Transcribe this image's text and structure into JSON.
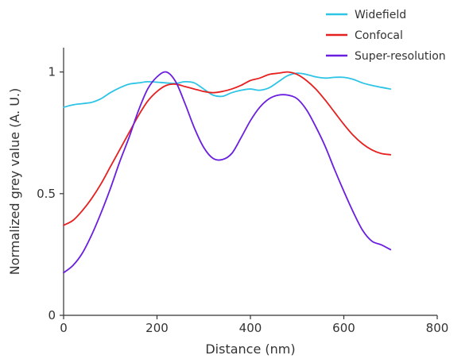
{
  "chart_data": {
    "type": "line",
    "title": "",
    "xlabel": "Distance (nm)",
    "ylabel": "Normalized grey value (A. U.)",
    "xlim": [
      0,
      800
    ],
    "ylim": [
      0,
      1.1
    ],
    "xticks": [
      0,
      200,
      400,
      600,
      800
    ],
    "xtick_labels": [
      "0",
      "200",
      "400",
      "600",
      "800"
    ],
    "yticks": [
      0,
      0.5,
      1
    ],
    "ytick_labels": [
      "0",
      "0.5",
      "1"
    ],
    "grid": false,
    "legend_position": "top-right",
    "series": [
      {
        "name": "Widefield",
        "color": "#2ec4e6",
        "x": [
          0,
          20,
          40,
          60,
          80,
          100,
          120,
          140,
          160,
          180,
          200,
          220,
          240,
          260,
          280,
          300,
          320,
          340,
          360,
          380,
          400,
          420,
          440,
          460,
          480,
          500,
          520,
          540,
          560,
          580,
          600,
          620,
          640,
          660,
          680,
          700
        ],
        "y": [
          0.855,
          0.865,
          0.87,
          0.875,
          0.89,
          0.915,
          0.935,
          0.95,
          0.955,
          0.96,
          0.958,
          0.955,
          0.953,
          0.96,
          0.955,
          0.93,
          0.905,
          0.9,
          0.915,
          0.925,
          0.93,
          0.925,
          0.935,
          0.96,
          0.985,
          0.995,
          0.99,
          0.98,
          0.975,
          0.978,
          0.978,
          0.97,
          0.955,
          0.945,
          0.937,
          0.93
        ]
      },
      {
        "name": "Confocal",
        "color": "#e62020",
        "x": [
          0,
          20,
          40,
          60,
          80,
          100,
          120,
          140,
          160,
          180,
          200,
          220,
          240,
          260,
          280,
          300,
          320,
          340,
          360,
          380,
          400,
          420,
          440,
          460,
          480,
          500,
          520,
          540,
          560,
          580,
          600,
          620,
          640,
          660,
          680,
          700
        ],
        "y": [
          0.37,
          0.39,
          0.43,
          0.48,
          0.54,
          0.61,
          0.68,
          0.75,
          0.82,
          0.88,
          0.92,
          0.945,
          0.95,
          0.94,
          0.93,
          0.92,
          0.915,
          0.92,
          0.93,
          0.945,
          0.965,
          0.975,
          0.99,
          0.995,
          1.0,
          0.99,
          0.965,
          0.93,
          0.885,
          0.835,
          0.785,
          0.74,
          0.705,
          0.68,
          0.665,
          0.66
        ]
      },
      {
        "name": "Super-resolution",
        "color": "#6a1fe0",
        "x": [
          0,
          20,
          40,
          60,
          80,
          100,
          120,
          140,
          160,
          180,
          200,
          220,
          240,
          260,
          280,
          300,
          320,
          340,
          360,
          380,
          400,
          420,
          440,
          460,
          480,
          500,
          520,
          540,
          560,
          580,
          600,
          620,
          640,
          660,
          680,
          700
        ],
        "y": [
          0.175,
          0.205,
          0.255,
          0.33,
          0.42,
          0.52,
          0.63,
          0.73,
          0.84,
          0.93,
          0.98,
          1.0,
          0.96,
          0.87,
          0.77,
          0.69,
          0.645,
          0.64,
          0.665,
          0.73,
          0.8,
          0.855,
          0.89,
          0.905,
          0.905,
          0.89,
          0.845,
          0.775,
          0.695,
          0.6,
          0.51,
          0.425,
          0.35,
          0.305,
          0.29,
          0.27
        ]
      }
    ]
  }
}
